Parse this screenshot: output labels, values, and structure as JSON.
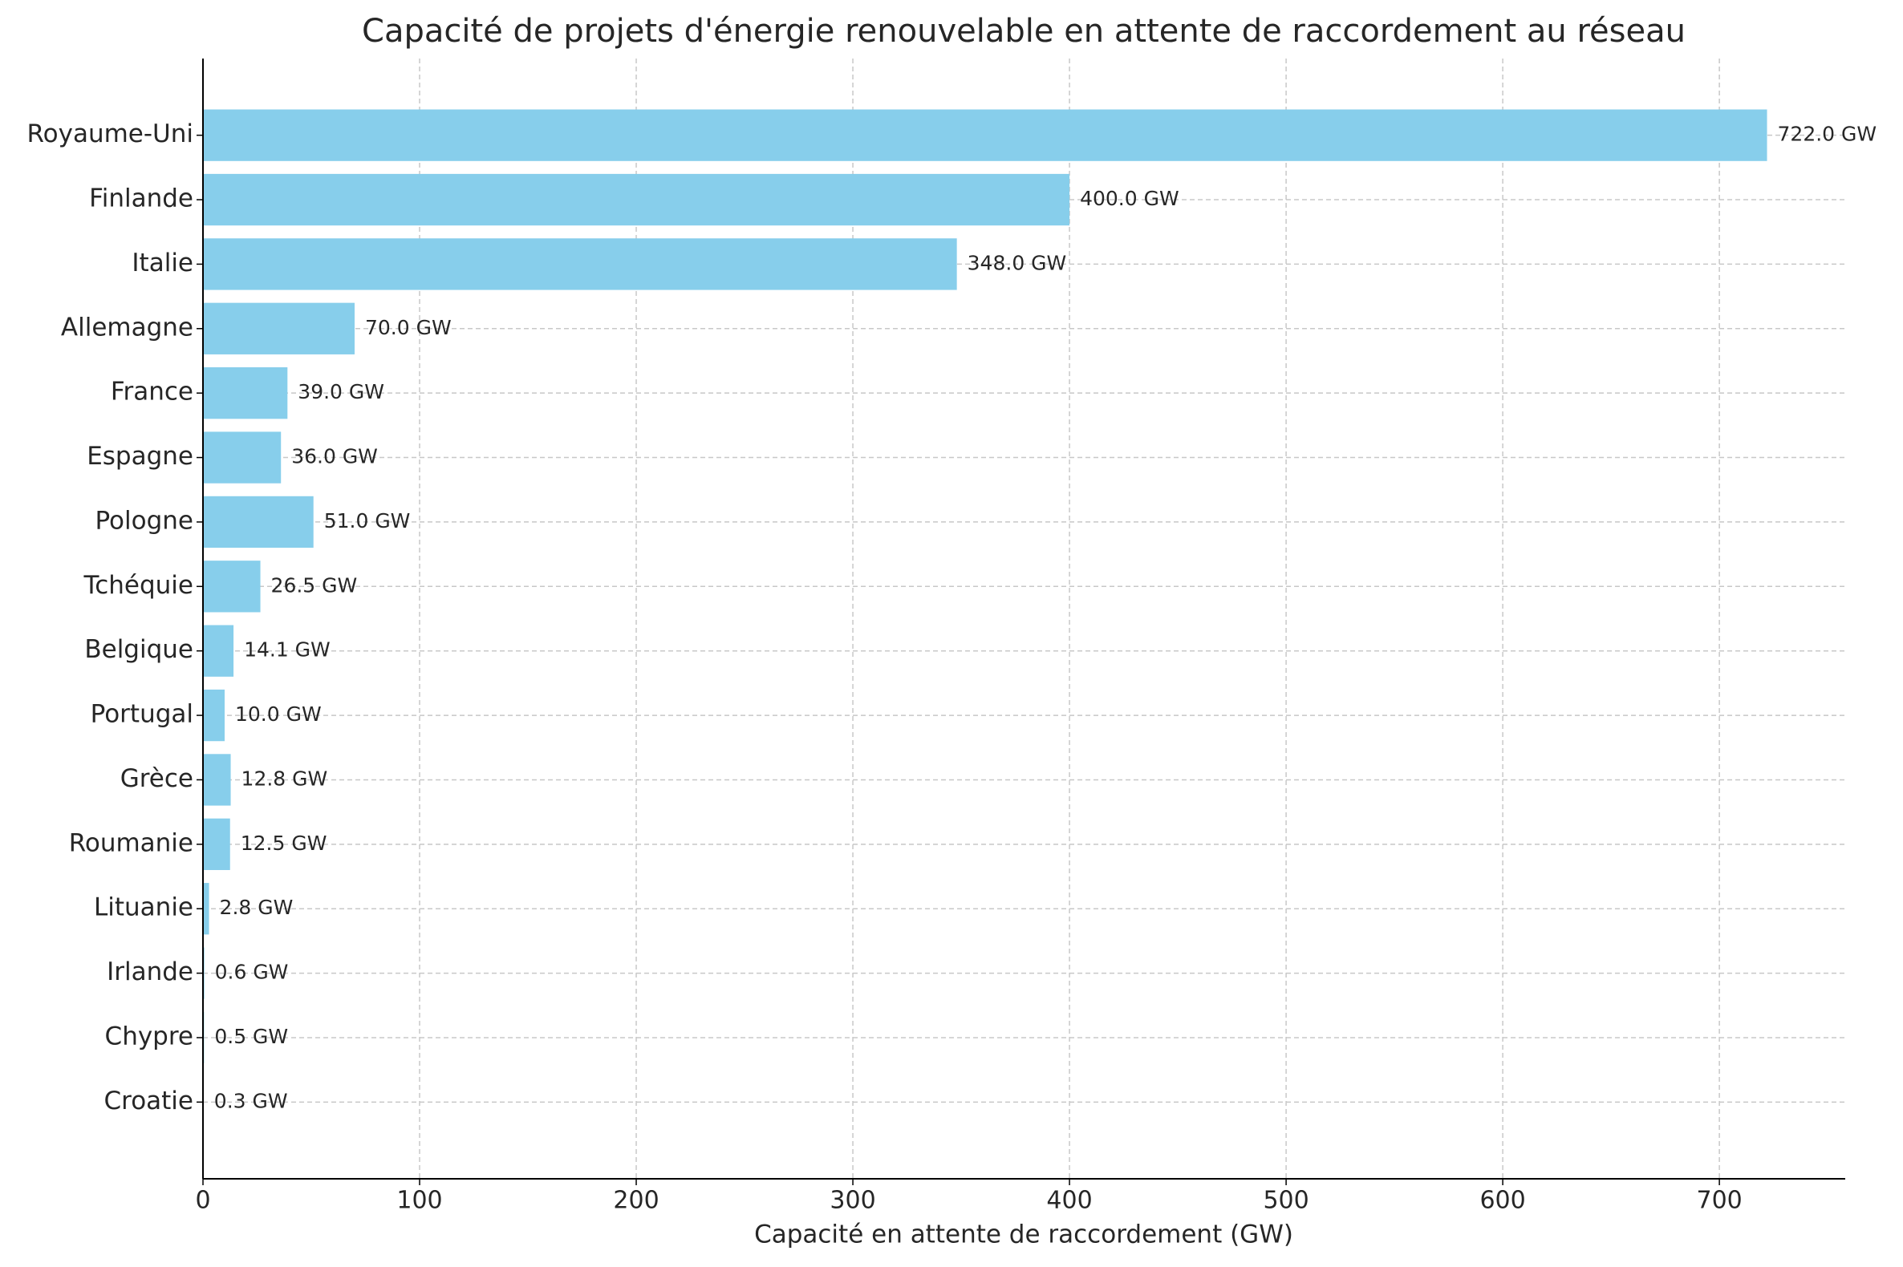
{
  "chart_data": {
    "type": "barh",
    "title": "Capacité de projets d'énergie renouvelable en attente de raccordement au réseau",
    "x_label": "Capacité en attente de raccordement (GW)",
    "categories": [
      "Royaume-Uni",
      "Finlande",
      "Italie",
      "Allemagne",
      "France",
      "Espagne",
      "Pologne",
      "Tchéquie",
      "Belgique",
      "Portugal",
      "Grèce",
      "Roumanie",
      "Lituanie",
      "Irlande",
      "Chypre",
      "Croatie"
    ],
    "values": [
      722,
      400,
      348,
      70,
      39,
      36,
      51,
      26.5,
      14.1,
      10,
      12.8,
      12.5,
      2.8,
      0.6,
      0.5,
      0.3
    ],
    "value_labels": [
      "722.0 GW",
      "400.0 GW",
      "348.0 GW",
      "70.0 GW",
      "39.0 GW",
      "36.0 GW",
      "51.0 GW",
      "26.5 GW",
      "14.1 GW",
      "10.0 GW",
      "12.8 GW",
      "12.5 GW",
      "2.8 GW",
      "0.6 GW",
      "0.5 GW",
      "0.3 GW"
    ],
    "color": "#87ceeb",
    "xlim": [
      0,
      758.1
    ],
    "xticks": [
      0,
      100,
      200,
      300,
      400,
      500,
      600,
      700
    ],
    "grid": true
  }
}
